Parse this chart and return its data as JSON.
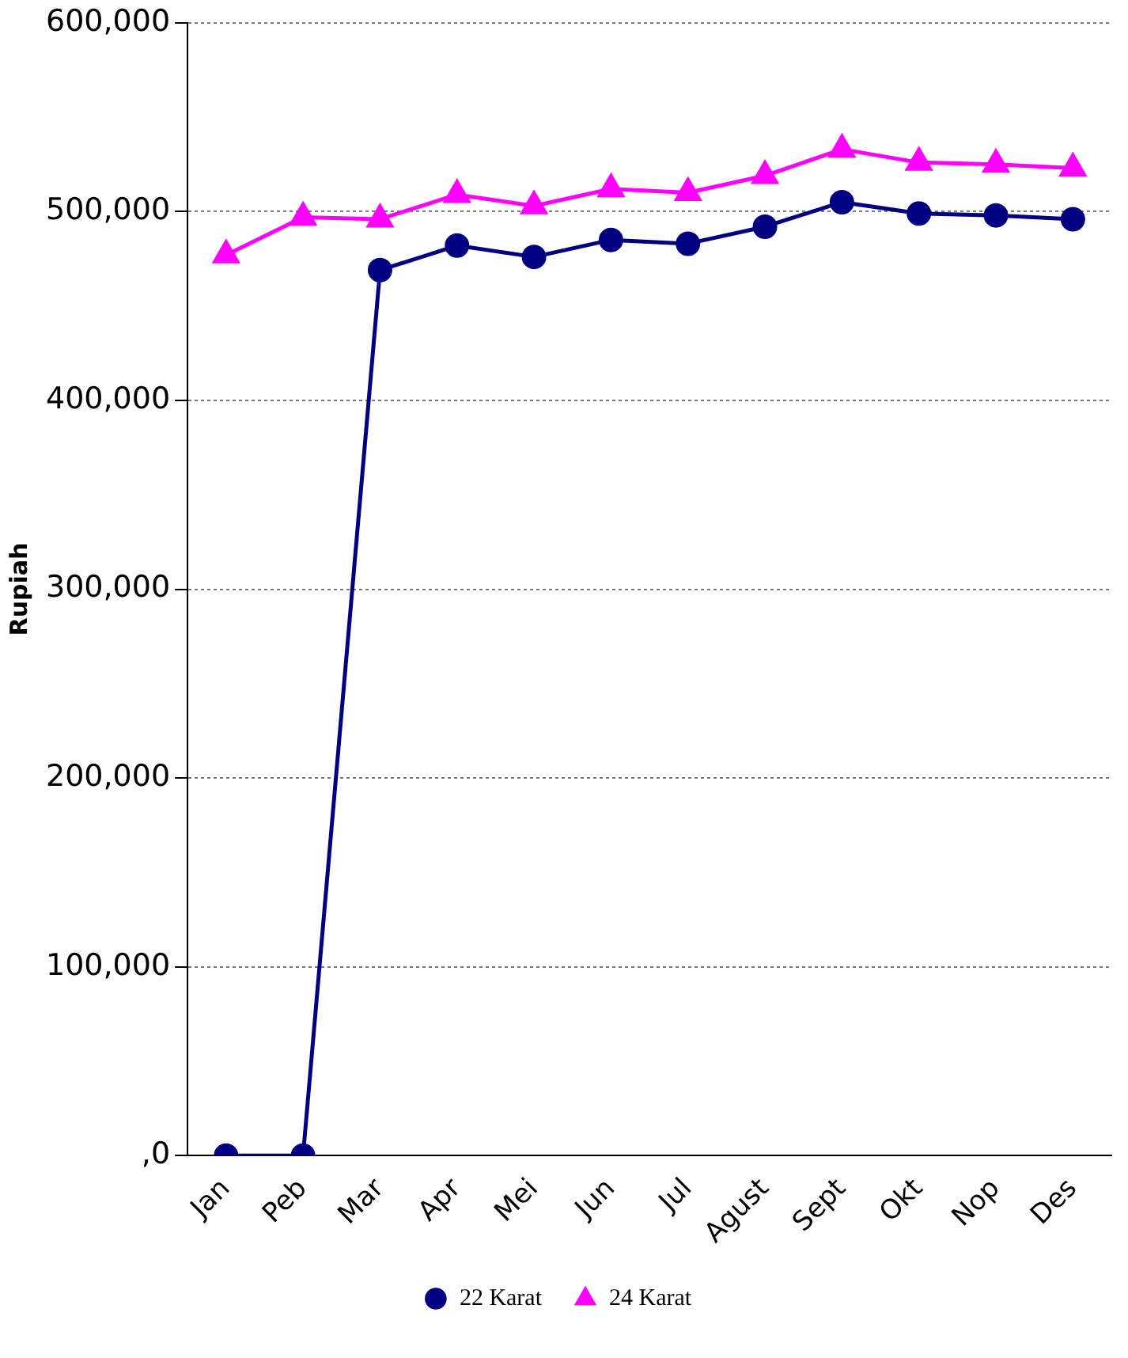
{
  "chart_data": {
    "type": "line",
    "ylabel": "Rupiah",
    "categories": [
      "Jan",
      "Peb",
      "Mar",
      "Apr",
      "Mei",
      "Jun",
      "Jul",
      "Agust",
      "Sept",
      "Okt",
      "Nop",
      "Des"
    ],
    "series": [
      {
        "name": "22 Karat",
        "color": "#000080",
        "marker": "circle",
        "values": [
          0,
          0,
          469000,
          482000,
          476000,
          485000,
          483000,
          492000,
          505000,
          499000,
          498000,
          496000
        ]
      },
      {
        "name": "24 Karat",
        "color": "#ff00ff",
        "marker": "triangle",
        "values": [
          477000,
          497000,
          496000,
          509000,
          503000,
          512000,
          510000,
          519000,
          533000,
          526000,
          525000,
          523000
        ]
      }
    ],
    "ylim": [
      0,
      600000
    ],
    "yticks": [
      {
        "value": 0,
        "label": ",0"
      },
      {
        "value": 100000,
        "label": "100,000"
      },
      {
        "value": 200000,
        "label": "200,000"
      },
      {
        "value": 300000,
        "label": "300,000"
      },
      {
        "value": 400000,
        "label": "400,000"
      },
      {
        "value": 500000,
        "label": "500,000"
      },
      {
        "value": 600000,
        "label": "600,000"
      }
    ],
    "grid": "y",
    "legend": "bottom"
  }
}
